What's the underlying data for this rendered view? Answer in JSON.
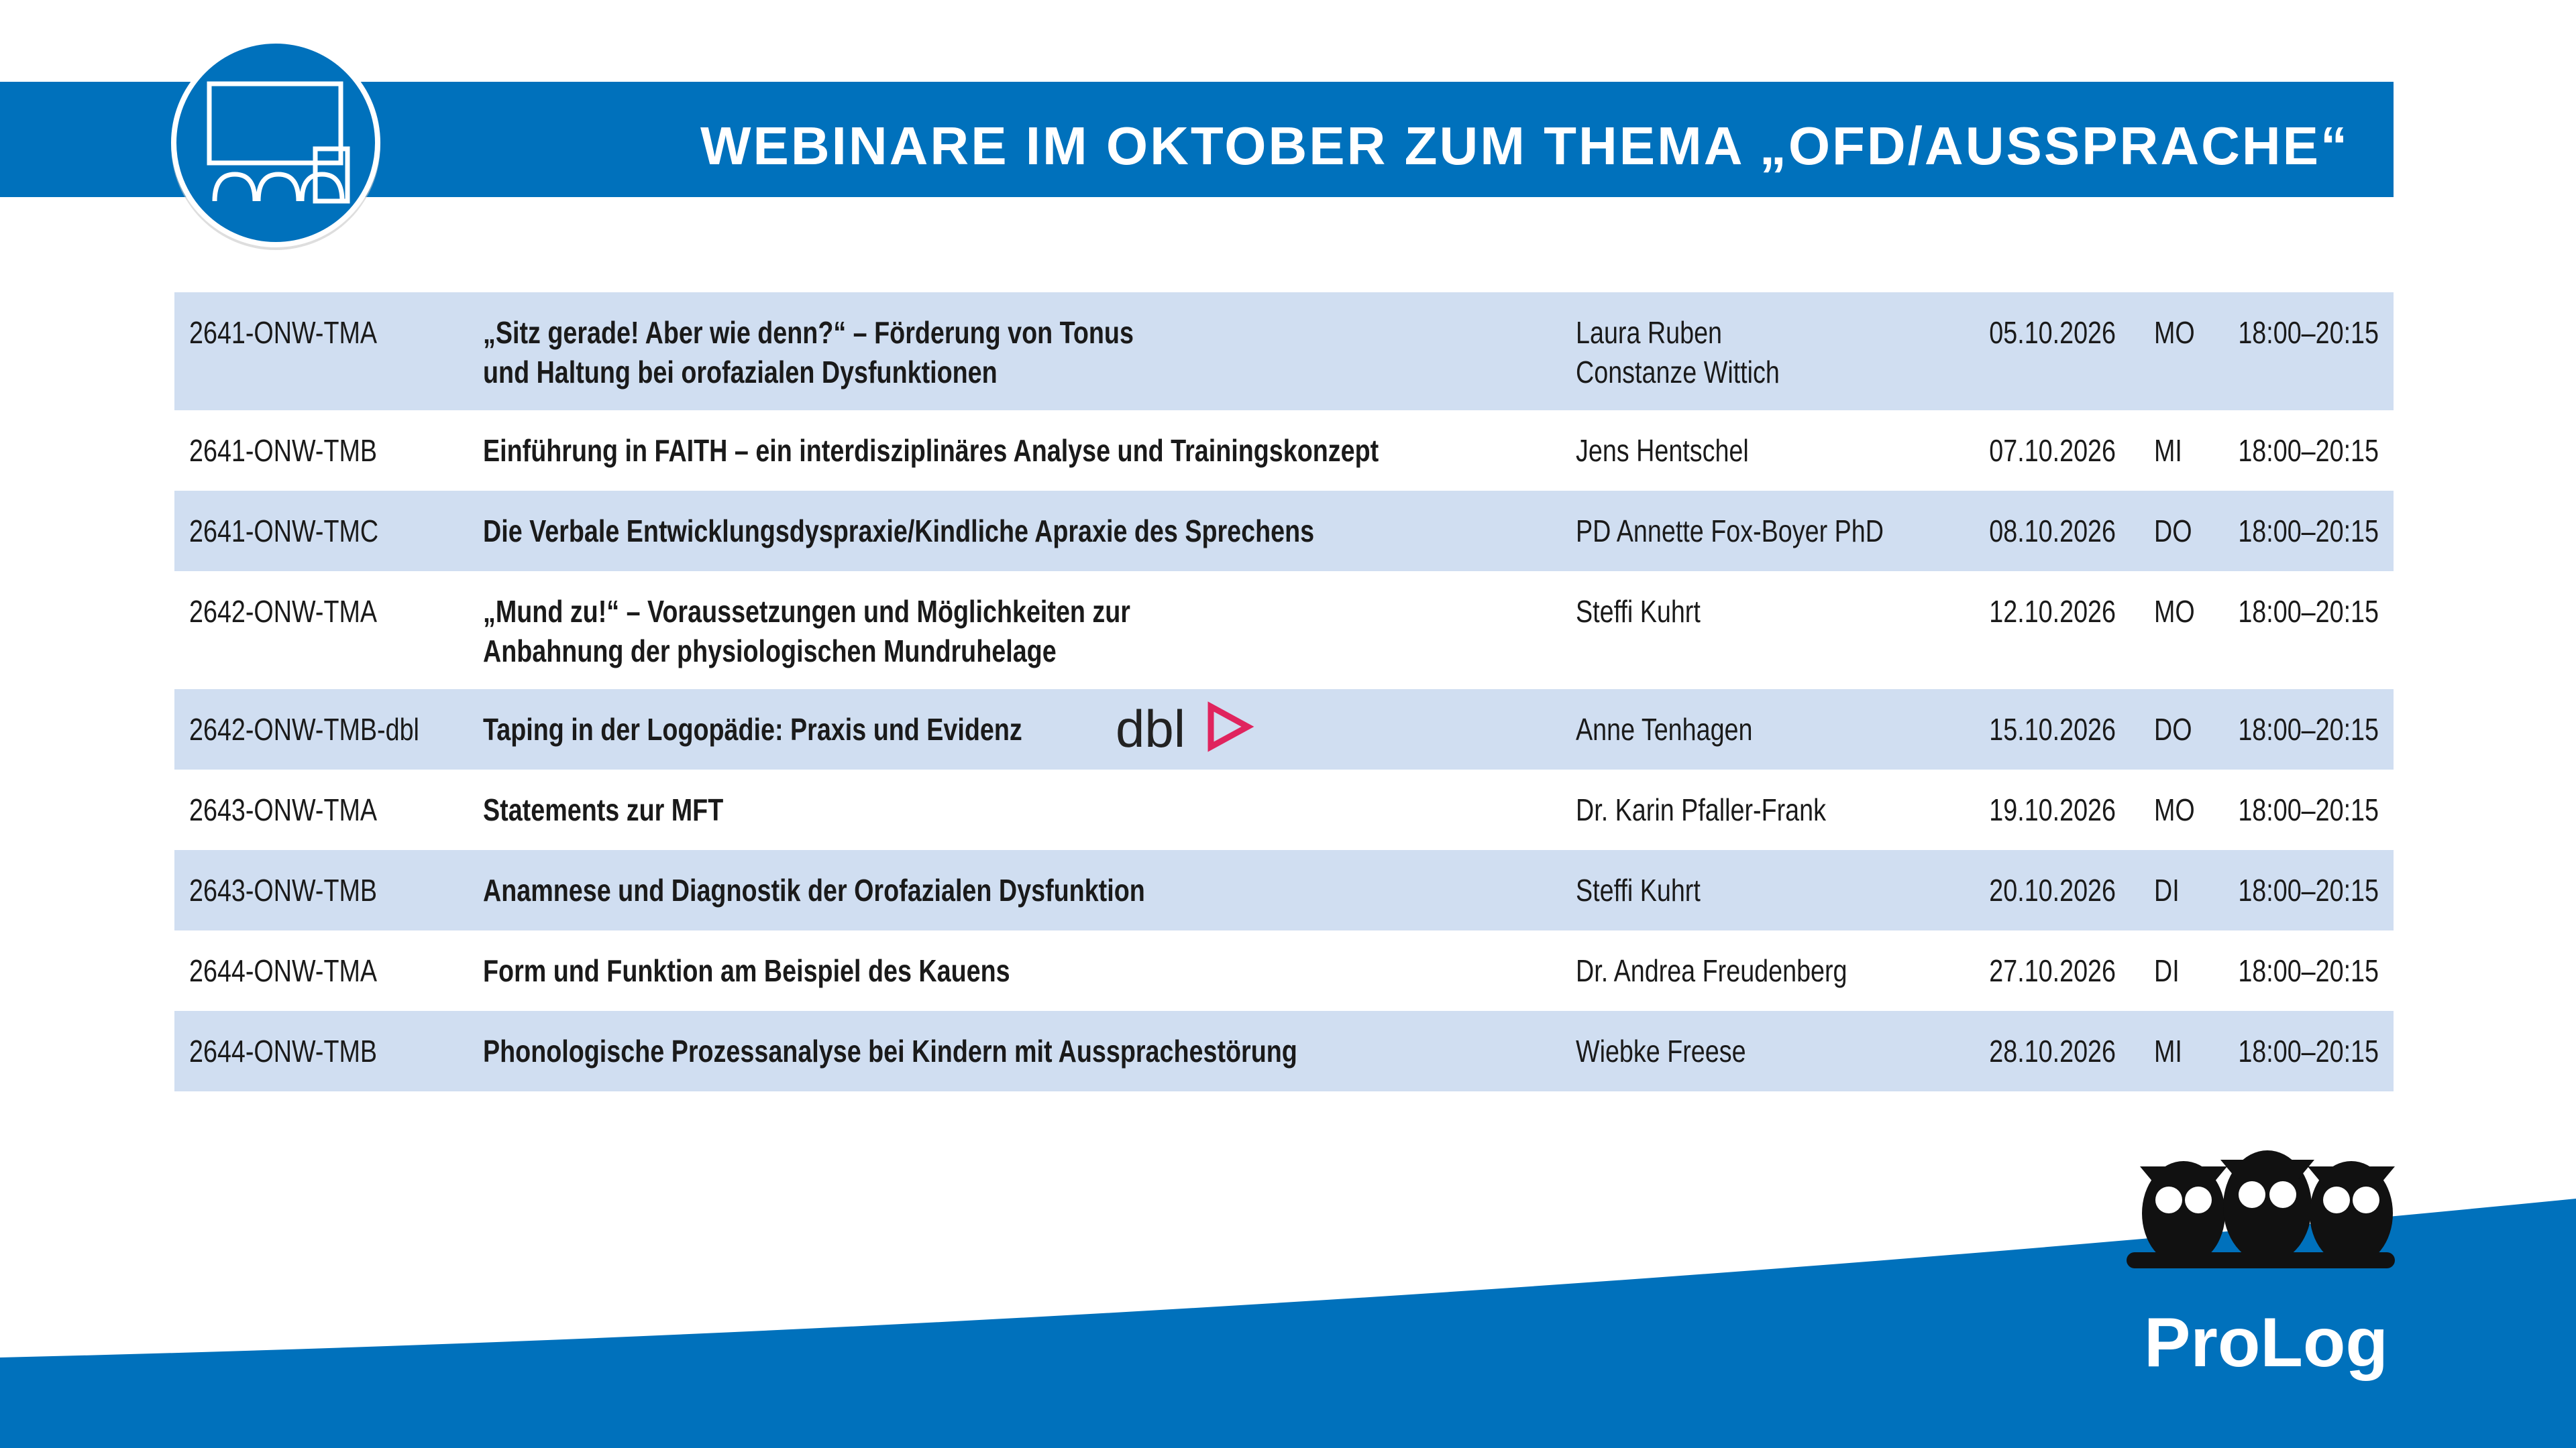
{
  "header": {
    "title": "WEBINARE IM OKTOBER ZUM THEMA „OFD/AUSSPRACHE“"
  },
  "table": {
    "rows": [
      {
        "code": "2641-ONW-TMA",
        "title": [
          "„Sitz gerade! Aber wie denn?“ – Förderung von Tonus",
          "und Haltung bei orofazialen Dysfunktionen"
        ],
        "speaker": [
          "Laura Ruben",
          "Constanze Wittich"
        ],
        "date": "05.10.2026",
        "day": "MO",
        "time": "18:00–20:15"
      },
      {
        "code": "2641-ONW-TMB",
        "title": [
          "Einführung in FAITH – ein interdisziplinäres Analyse und Trainingskonzept"
        ],
        "speaker": [
          "Jens Hentschel"
        ],
        "date": "07.10.2026",
        "day": "MI",
        "time": "18:00–20:15"
      },
      {
        "code": "2641-ONW-TMC",
        "title": [
          "Die Verbale Entwicklungsdyspraxie/Kindliche Apraxie des Sprechens"
        ],
        "speaker": [
          "PD Annette Fox-Boyer PhD"
        ],
        "date": "08.10.2026",
        "day": "DO",
        "time": "18:00–20:15"
      },
      {
        "code": "2642-ONW-TMA",
        "title": [
          "„Mund zu!“ – Voraussetzungen und Möglichkeiten zur",
          "Anbahnung der physiologischen Mundruhelage"
        ],
        "speaker": [
          "Steffi Kuhrt"
        ],
        "date": "12.10.2026",
        "day": "MO",
        "time": "18:00–20:15"
      },
      {
        "code": "2642-ONW-TMB-dbl",
        "title": [
          "Taping in der Logopädie: Praxis und Evidenz"
        ],
        "badge": "dbl",
        "speaker": [
          "Anne Tenhagen"
        ],
        "date": "15.10.2026",
        "day": "DO",
        "time": "18:00–20:15"
      },
      {
        "code": "2643-ONW-TMA",
        "title": [
          "Statements zur MFT"
        ],
        "speaker": [
          "Dr. Karin Pfaller-Frank"
        ],
        "date": "19.10.2026",
        "day": "MO",
        "time": "18:00–20:15"
      },
      {
        "code": "2643-ONW-TMB",
        "title": [
          "Anamnese und Diagnostik der Orofazialen Dysfunktion"
        ],
        "speaker": [
          "Steffi Kuhrt"
        ],
        "date": "20.10.2026",
        "day": "DI",
        "time": "18:00–20:15"
      },
      {
        "code": "2644-ONW-TMA",
        "title": [
          "Form und Funktion am Beispiel des Kauens"
        ],
        "speaker": [
          "Dr. Andrea Freudenberg"
        ],
        "date": "27.10.2026",
        "day": "DI",
        "time": "18:00–20:15"
      },
      {
        "code": "2644-ONW-TMB",
        "title": [
          "Phonologische Prozessanalyse bei Kindern mit Aussprachestörung"
        ],
        "speaker": [
          "Wiebke Freese"
        ],
        "date": "28.10.2026",
        "day": "MI",
        "time": "18:00–20:15"
      }
    ]
  },
  "footer": {
    "brand": "ProLog"
  }
}
